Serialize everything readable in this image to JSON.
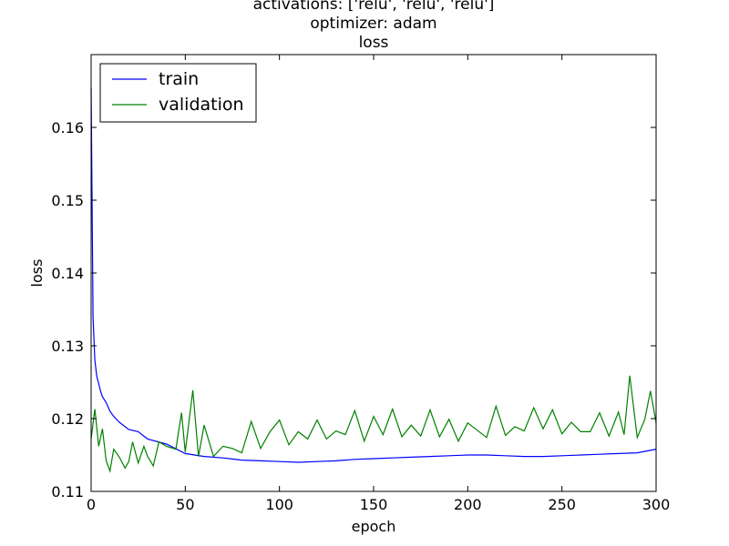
{
  "chart_data": {
    "type": "line",
    "title_lines": [
      "activations: ['relu', 'relu', 'relu']",
      "optimizer: adam",
      "loss"
    ],
    "xlabel": "epoch",
    "ylabel": "loss",
    "xlim": [
      0,
      300
    ],
    "ylim": [
      0.11,
      0.17
    ],
    "xticks": [
      0,
      50,
      100,
      150,
      200,
      250,
      300
    ],
    "xtick_labels": [
      "0",
      "50",
      "100",
      "150",
      "200",
      "250",
      "300"
    ],
    "yticks": [
      0.11,
      0.12,
      0.13,
      0.14,
      0.15,
      0.16
    ],
    "ytick_labels": [
      "0.11",
      "0.12",
      "0.13",
      "0.14",
      "0.15",
      "0.16"
    ],
    "grid": false,
    "legend_position": "top-left",
    "series": [
      {
        "name": "train",
        "color": "#0000ff",
        "x": [
          0,
          1,
          2,
          3,
          4,
          5,
          6,
          8,
          10,
          12,
          15,
          20,
          25,
          30,
          40,
          50,
          60,
          70,
          80,
          90,
          100,
          110,
          120,
          130,
          140,
          150,
          160,
          170,
          180,
          190,
          200,
          210,
          220,
          230,
          240,
          250,
          260,
          270,
          280,
          290,
          300
        ],
        "y": [
          0.1655,
          0.134,
          0.128,
          0.1258,
          0.1248,
          0.1238,
          0.123,
          0.1222,
          0.121,
          0.1203,
          0.1195,
          0.1185,
          0.1182,
          0.1172,
          0.1165,
          0.1152,
          0.1148,
          0.1146,
          0.1143,
          0.1142,
          0.1141,
          0.114,
          0.1141,
          0.1142,
          0.1144,
          0.1145,
          0.1146,
          0.1147,
          0.1148,
          0.1149,
          0.115,
          0.115,
          0.1149,
          0.1148,
          0.1148,
          0.1149,
          0.115,
          0.1151,
          0.1152,
          0.1153,
          0.1158
        ]
      },
      {
        "name": "validation",
        "color": "#008000",
        "x": [
          0,
          2,
          4,
          6,
          8,
          10,
          12,
          15,
          18,
          20,
          22,
          25,
          28,
          30,
          33,
          36,
          40,
          45,
          48,
          50,
          54,
          57,
          60,
          65,
          70,
          75,
          80,
          85,
          90,
          95,
          100,
          105,
          110,
          115,
          120,
          125,
          130,
          135,
          140,
          145,
          150,
          155,
          160,
          165,
          170,
          175,
          180,
          185,
          190,
          195,
          200,
          205,
          210,
          215,
          220,
          225,
          230,
          235,
          240,
          245,
          250,
          255,
          260,
          265,
          270,
          275,
          280,
          283,
          286,
          290,
          294,
          297,
          300
        ],
        "y": [
          0.1172,
          0.1213,
          0.1162,
          0.1186,
          0.1142,
          0.1128,
          0.1158,
          0.1147,
          0.1132,
          0.1141,
          0.1168,
          0.1139,
          0.1162,
          0.1148,
          0.1135,
          0.1168,
          0.1162,
          0.1158,
          0.1208,
          0.1154,
          0.1239,
          0.1148,
          0.1191,
          0.1148,
          0.1162,
          0.1159,
          0.1153,
          0.1196,
          0.1159,
          0.1182,
          0.1198,
          0.1164,
          0.1182,
          0.1172,
          0.1198,
          0.1172,
          0.1183,
          0.1178,
          0.1211,
          0.1169,
          0.1203,
          0.1178,
          0.1213,
          0.1175,
          0.1191,
          0.1176,
          0.1212,
          0.1175,
          0.1199,
          0.1169,
          0.1194,
          0.1184,
          0.1174,
          0.1217,
          0.1177,
          0.1189,
          0.1183,
          0.1215,
          0.1186,
          0.1212,
          0.1179,
          0.1195,
          0.1182,
          0.1182,
          0.1208,
          0.1176,
          0.1209,
          0.1178,
          0.1259,
          0.1174,
          0.1199,
          0.1238,
          0.1194
        ]
      }
    ]
  }
}
